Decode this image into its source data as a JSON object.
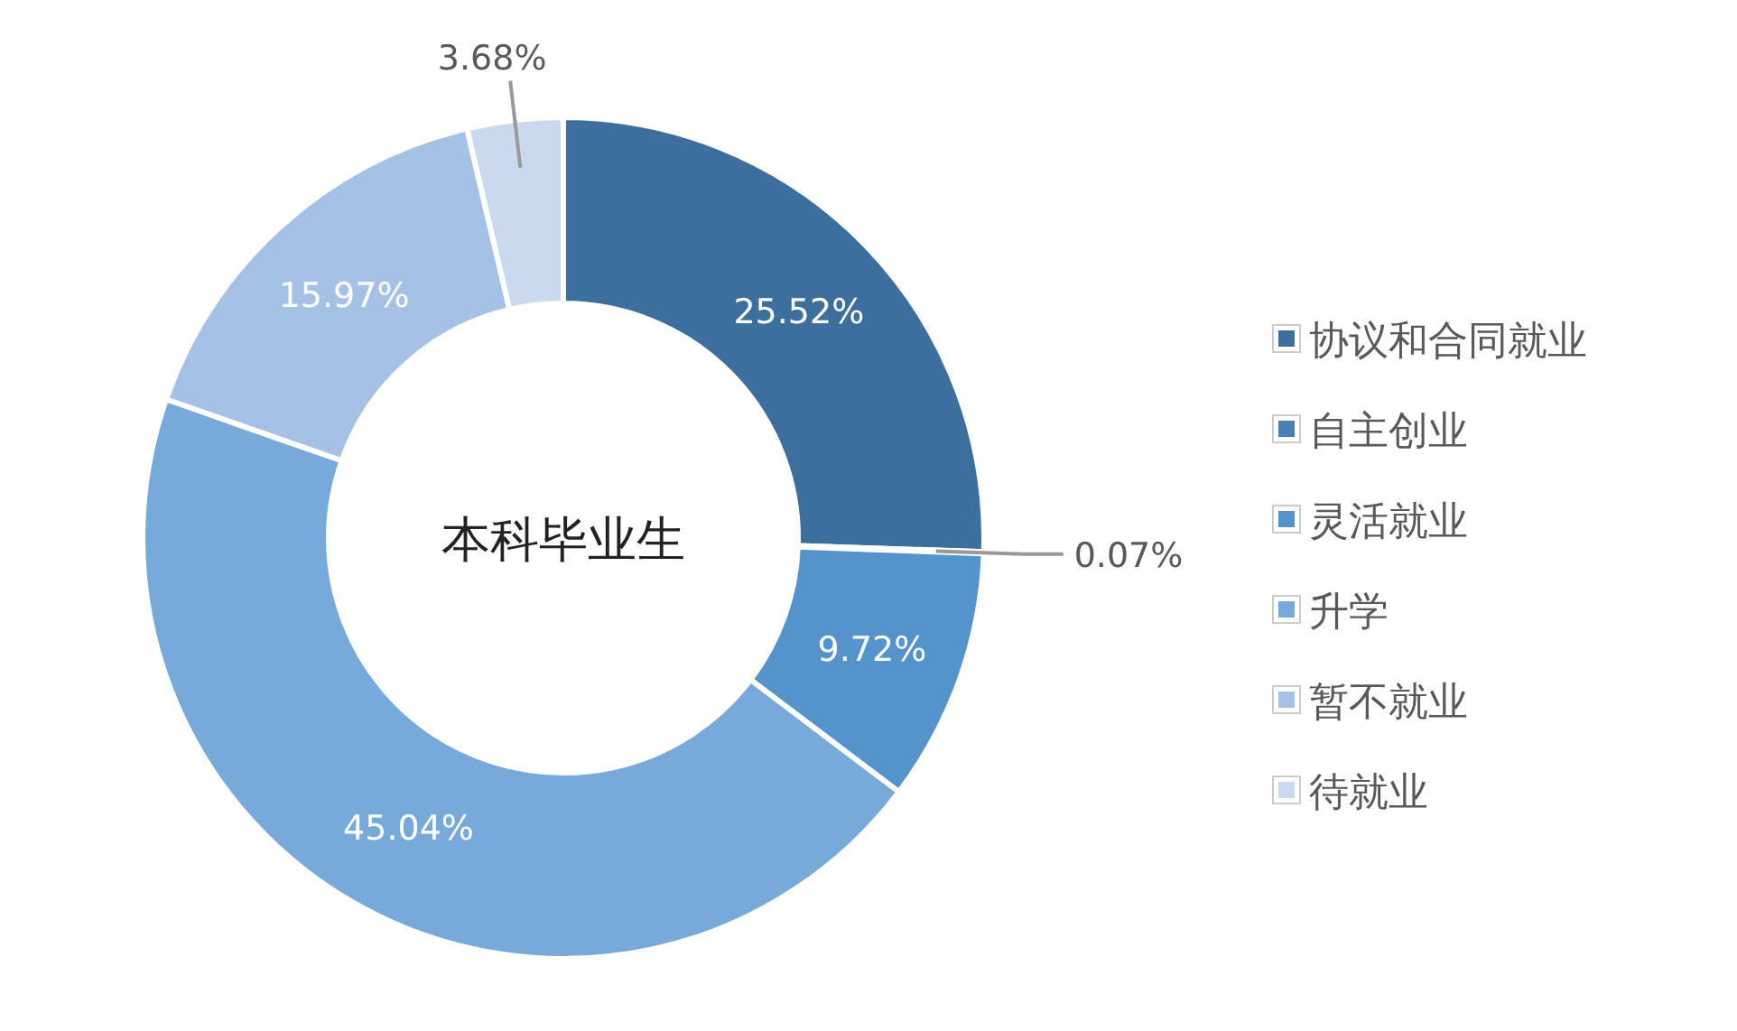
{
  "chart_data": {
    "type": "donut",
    "title": "本科毕业生",
    "categories": [
      "协议和合同就业",
      "自主创业",
      "灵活就业",
      "升学",
      "暂不就业",
      "待就业"
    ],
    "values": [
      25.52,
      0.07,
      9.72,
      45.04,
      15.97,
      3.68
    ],
    "colors": [
      "#3d6f9e",
      "#4a7fb6",
      "#5593cc",
      "#78a9db",
      "#a6c1e6",
      "#cbd9ef"
    ],
    "value_labels": [
      "25.52%",
      "0.07%",
      "9.72%",
      "45.04%",
      "15.97%",
      "3.68%"
    ],
    "legend": "right"
  }
}
